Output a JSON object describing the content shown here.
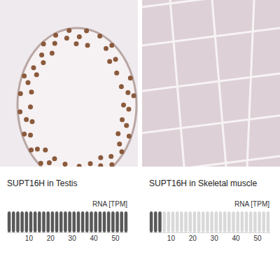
{
  "chart_data": [
    {
      "type": "bar",
      "title": "SUPT16H in Testis",
      "xlabel": "RNA [TPM]",
      "orientation": "horizontal",
      "values": [
        56
      ],
      "color": "#595959",
      "xlim": [
        0,
        56
      ],
      "xticks": [
        10,
        20,
        30,
        40,
        50
      ]
    },
    {
      "type": "bar",
      "title": "SUPT16H in Skeletal muscle",
      "xlabel": "RNA [TPM]",
      "orientation": "horizontal",
      "values": [
        6
      ],
      "color": "#595959",
      "xlim": [
        0,
        56
      ],
      "xticks": [
        10,
        20,
        30,
        40,
        50
      ]
    }
  ]
}
